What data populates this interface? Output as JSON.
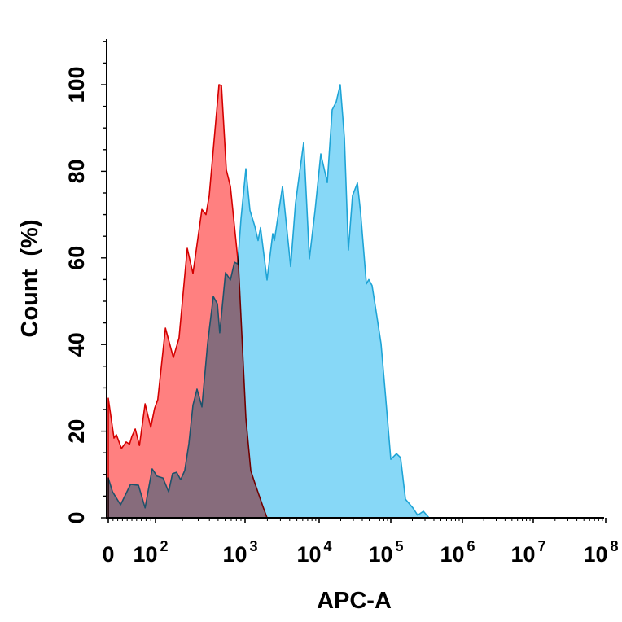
{
  "chart_data": {
    "type": "area",
    "title": "",
    "xlabel": "APC-A",
    "ylabel": "Count  (%)",
    "x_scale": "biexponential (linear 0-100, log above)",
    "xlim": [
      0,
      100000000
    ],
    "ylim": [
      0,
      110
    ],
    "grid": false,
    "legend": "none",
    "x_ticks": [
      {
        "value": 0,
        "base": "0",
        "exp": ""
      },
      {
        "value": 100,
        "base": "10",
        "exp": "2"
      },
      {
        "value": 1000,
        "base": "10",
        "exp": "3"
      },
      {
        "value": 10000,
        "base": "10",
        "exp": "4"
      },
      {
        "value": 100000,
        "base": "10",
        "exp": "5"
      },
      {
        "value": 1000000,
        "base": "10",
        "exp": "6"
      },
      {
        "value": 10000000,
        "base": "10",
        "exp": "7"
      },
      {
        "value": 100000000,
        "base": "10",
        "exp": "8"
      }
    ],
    "y_ticks": [
      "0",
      "20",
      "40",
      "60",
      "80",
      "100"
    ],
    "series": [
      {
        "color_fill": "#ff8080",
        "color_line": "#d40000",
        "x": [
          0,
          12,
          17,
          28,
          38,
          45,
          50,
          57,
          66,
          78,
          90,
          98,
          106,
          129,
          158,
          183,
          226,
          262,
          330,
          366,
          398,
          512,
          545,
          618,
          686,
          846,
          1025,
          1194,
          1355,
          1745,
          1982
        ],
        "y": [
          27.6,
          18.4,
          19.2,
          16,
          17.5,
          17,
          18.8,
          20.5,
          16.7,
          26.3,
          20.9,
          25.2,
          27.3,
          43.8,
          37,
          41.5,
          62.2,
          56.4,
          71.2,
          70,
          74.4,
          100,
          99.8,
          80.3,
          76.5,
          58,
          23,
          10.9,
          8,
          2.6,
          0
        ]
      },
      {
        "color_fill": "#87d8f7",
        "color_line": "#1ea4d6",
        "x": [
          0,
          9,
          26,
          47,
          64,
          78,
          93,
          104,
          121,
          140,
          155,
          172,
          191,
          212,
          236,
          262,
          291,
          330,
          382,
          442,
          491,
          522,
          605,
          686,
          762,
          828,
          901,
          1025,
          1164,
          1355,
          1500,
          1618,
          1982,
          2366,
          2489,
          3199,
          4121,
          4797,
          6180,
          7379,
          8810,
          10540,
          13000,
          15200,
          17300,
          19700,
          22500,
          25600,
          29200,
          34200,
          38000,
          45600,
          49400,
          54800,
          64100,
          73100,
          83200,
          100000,
          120000,
          137000,
          160000,
          203000,
          237000,
          285000,
          342000
        ],
        "y": [
          9.2,
          6,
          3,
          7.7,
          7.5,
          2.3,
          11.3,
          9.6,
          9.2,
          6,
          10.2,
          10.5,
          8.8,
          10.9,
          17.1,
          26,
          29.7,
          25.6,
          40.2,
          51.1,
          49.4,
          42.7,
          56.6,
          54.9,
          59,
          58.6,
          69,
          80.6,
          71,
          67.3,
          64,
          67,
          54.9,
          65.6,
          64,
          76.5,
          58,
          72.7,
          86.7,
          59.8,
          71,
          84,
          77.4,
          94.2,
          96,
          100,
          87.8,
          61.8,
          74.4,
          77.3,
          70.3,
          54,
          55,
          53.6,
          46.4,
          40.2,
          29.3,
          13.5,
          14.8,
          13.9,
          4.3,
          2.3,
          0.6,
          1.5,
          0
        ]
      }
    ]
  }
}
